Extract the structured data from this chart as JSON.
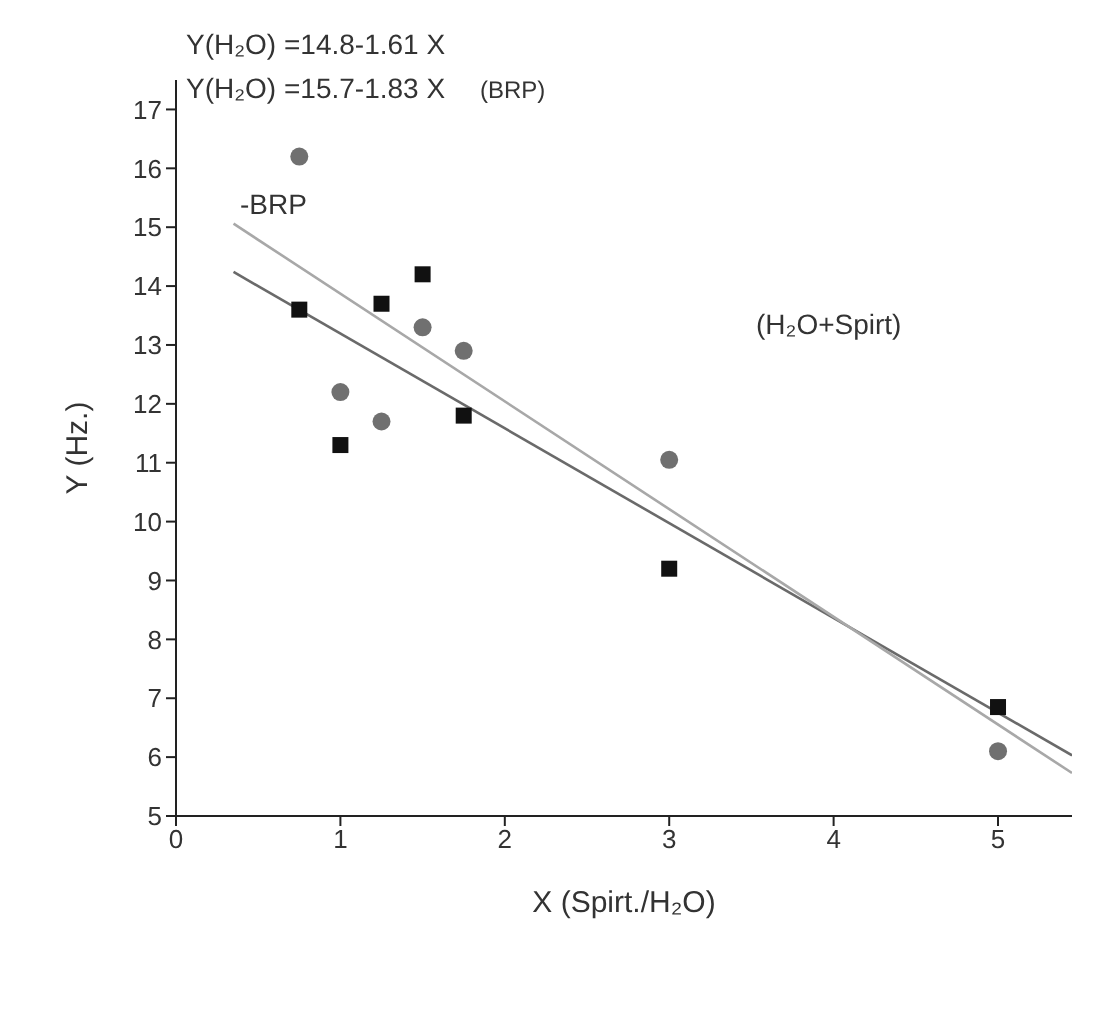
{
  "chart_data": {
    "type": "scatter",
    "xlabel": "X (Spirt./H₂O)",
    "ylabel": "Y (Hz.)",
    "xlim": [
      0,
      5.45
    ],
    "xticks": [
      0,
      1,
      2,
      3,
      4,
      5
    ],
    "ylim": [
      5,
      17.5
    ],
    "yticks": [
      5,
      6,
      7,
      8,
      9,
      10,
      11,
      12,
      13,
      14,
      15,
      16,
      17
    ],
    "series": [
      {
        "marker": "square",
        "color": "#111111",
        "x": [
          0.75,
          1,
          1.25,
          1.5,
          1.75,
          3,
          5
        ],
        "values": [
          13.6,
          11.3,
          13.7,
          14.2,
          11.8,
          9.2,
          6.85
        ]
      },
      {
        "marker": "circle",
        "color": "#707070",
        "x": [
          0.75,
          1,
          1.25,
          1.5,
          1.75,
          3,
          5
        ],
        "values": [
          16.2,
          12.2,
          11.7,
          13.3,
          12.9,
          11.05,
          6.1
        ]
      },
      {
        "type": "line",
        "marker": "none",
        "color": "#6a6a6a",
        "x": [
          0.35,
          5.45
        ],
        "values": [
          14.24,
          6.03
        ]
      },
      {
        "type": "line",
        "marker": "none",
        "color": "#a8a8a8",
        "x": [
          0.35,
          5.45
        ],
        "values": [
          15.06,
          5.73
        ]
      }
    ],
    "annotations": [
      "Y(H₂O) =14.8-1.61 X",
      "Y(H₂O) =15.7-1.83 X",
      "(BRP)",
      "-BRP",
      "(H₂O+Spirt)"
    ]
  }
}
